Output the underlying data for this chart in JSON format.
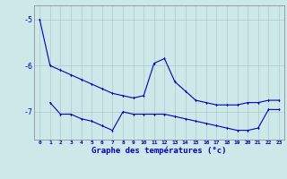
{
  "xlabel": "Graphe des températures (°c)",
  "ylabel": "",
  "background_color": "#cce8e8",
  "grid_color": "#aacccc",
  "line_color": "#0000bb",
  "line1_x": [
    0,
    1,
    2,
    3,
    4,
    5,
    6,
    7,
    8,
    9,
    10,
    11,
    12,
    13,
    14,
    15,
    16,
    17,
    18,
    19,
    20,
    21,
    22,
    23
  ],
  "line1_y": [
    -5.0,
    -6.0,
    -6.1,
    -6.2,
    -6.3,
    -6.4,
    -6.5,
    -6.6,
    -6.65,
    -6.7,
    -6.65,
    -5.95,
    -5.85,
    -6.35,
    -6.55,
    -6.75,
    -6.8,
    -6.85,
    -6.85,
    -6.85,
    -6.8,
    -6.8,
    -6.75,
    -6.75
  ],
  "line2_x": [
    1,
    2,
    3,
    4,
    5,
    6,
    7,
    8,
    9,
    10,
    11,
    12,
    13,
    14,
    15,
    16,
    17,
    18,
    19,
    20,
    21,
    22,
    23
  ],
  "line2_y": [
    -6.8,
    -7.05,
    -7.05,
    -7.15,
    -7.2,
    -7.3,
    -7.4,
    -7.0,
    -7.05,
    -7.05,
    -7.05,
    -7.05,
    -7.1,
    -7.15,
    -7.2,
    -7.25,
    -7.3,
    -7.35,
    -7.4,
    -7.4,
    -7.35,
    -6.95,
    -6.95
  ],
  "ylim": [
    -7.6,
    -4.7
  ],
  "xlim": [
    -0.5,
    23.5
  ],
  "yticks": [
    -7,
    -6,
    -5
  ],
  "ytick_labels": [
    "-7",
    "-6",
    "-5"
  ],
  "xticks": [
    0,
    1,
    2,
    3,
    4,
    5,
    6,
    7,
    8,
    9,
    10,
    11,
    12,
    13,
    14,
    15,
    16,
    17,
    18,
    19,
    20,
    21,
    22,
    23
  ],
  "figsize": [
    3.2,
    2.0
  ],
  "dpi": 100
}
